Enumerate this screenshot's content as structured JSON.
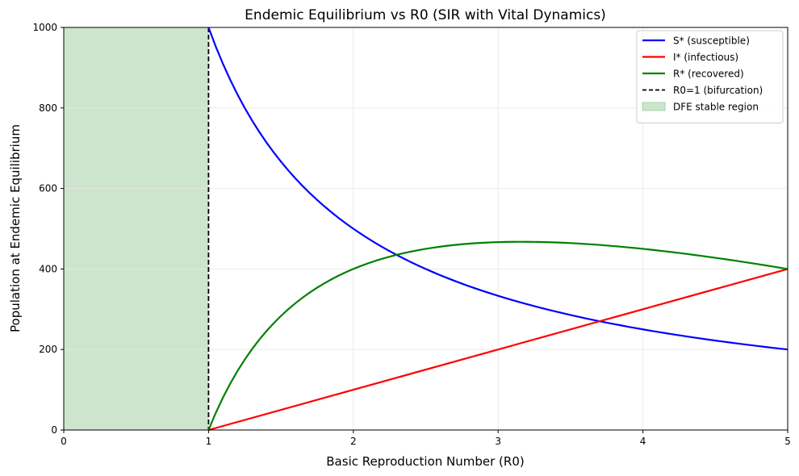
{
  "chart_data": {
    "type": "line",
    "title": "Endemic Equilibrium vs R0 (SIR with Vital Dynamics)",
    "xlabel": "Basic Reproduction Number (R0)",
    "ylabel": "Population at Endemic Equilibrium",
    "xlim": [
      0,
      5
    ],
    "ylim": [
      0,
      1000
    ],
    "xticks": [
      "0",
      "1",
      "2",
      "3",
      "4",
      "5"
    ],
    "yticks": [
      "0",
      "200",
      "400",
      "600",
      "800",
      "1000"
    ],
    "grid": true,
    "legend_position": "top-right",
    "shaded_region": {
      "label": "DFE stable region",
      "x_from": 0,
      "x_to": 1,
      "color": "#cde5cc"
    },
    "vline": {
      "label": "R0=1 (bifurcation)",
      "x": 1,
      "color": "#000000"
    },
    "series": [
      {
        "name": "S* (susceptible)",
        "color": "#0000ff",
        "x": [
          1.0,
          1.25,
          1.5,
          1.75,
          2.0,
          2.25,
          2.5,
          2.75,
          3.0,
          3.25,
          3.5,
          3.75,
          4.0,
          4.25,
          4.5,
          4.75,
          5.0
        ],
        "y": [
          1000,
          800,
          667,
          571,
          500,
          444,
          400,
          364,
          333,
          308,
          286,
          267,
          250,
          235,
          222,
          211,
          200
        ]
      },
      {
        "name": "I* (infectious)",
        "color": "#ff0000",
        "x": [
          1.0,
          5.0
        ],
        "y": [
          0,
          400
        ]
      },
      {
        "name": "R* (recovered)",
        "color": "#008000",
        "x": [
          1.0,
          1.25,
          1.5,
          1.75,
          2.0,
          2.25,
          2.5,
          2.75,
          3.0,
          3.25,
          3.5,
          3.75,
          4.0,
          4.25,
          4.5,
          4.75,
          5.0
        ],
        "y": [
          0,
          175,
          283,
          354,
          400,
          431,
          450,
          461,
          467,
          467,
          464,
          458,
          450,
          440,
          428,
          414,
          400
        ]
      }
    ]
  }
}
